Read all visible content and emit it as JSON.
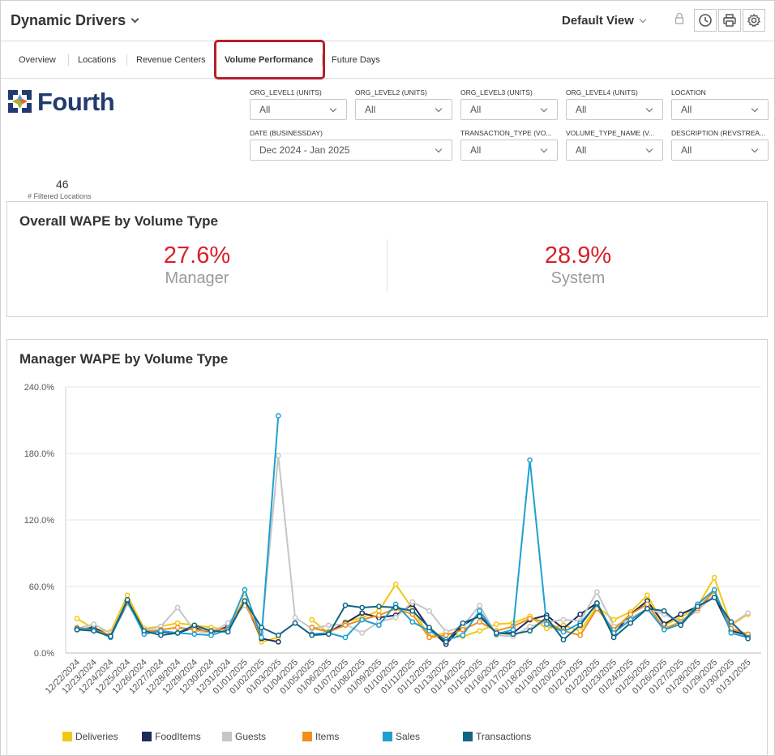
{
  "header": {
    "title": "Dynamic Drivers",
    "view_label": "Default View"
  },
  "tabs": [
    {
      "label": "Overview"
    },
    {
      "label": "Locations"
    },
    {
      "label": "Revenue Centers"
    },
    {
      "label": "Volume Performance",
      "active": true
    },
    {
      "label": "Future Days"
    }
  ],
  "brand": {
    "logo_text": "Fourth",
    "logo_colors": [
      "#5b9bd5",
      "#e8612c",
      "#8bbd3e",
      "#233a6e"
    ]
  },
  "filters": [
    {
      "label": "ORG_LEVEL1 (UNITS)",
      "value": "All"
    },
    {
      "label": "ORG_LEVEL2 (UNITS)",
      "value": "All"
    },
    {
      "label": "ORG_LEVEL3 (UNITS)",
      "value": "All"
    },
    {
      "label": "ORG_LEVEL4 (UNITS)",
      "value": "All"
    },
    {
      "label": "LOCATION",
      "value": "All"
    },
    {
      "label": "DATE (BUSINESSDAY)",
      "value": "Dec 2024 - Jan 2025"
    },
    {
      "label": "TRANSACTION_TYPE (VO...",
      "value": "All"
    },
    {
      "label": "VOLUME_TYPE_NAME (V...",
      "value": "All"
    },
    {
      "label": "DESCRIPTION (REVSTREA...",
      "value": "All"
    }
  ],
  "summary": {
    "count": "46",
    "count_label": "# Filtered Locations"
  },
  "overall_card": {
    "title": "Overall WAPE by Volume Type",
    "kpis": [
      {
        "value": "27.6%",
        "label": "Manager"
      },
      {
        "value": "28.9%",
        "label": "System"
      }
    ]
  },
  "colors": {
    "accent_red": "#d8202a",
    "tab_highlight": "#b4202c"
  },
  "chart_data": {
    "type": "line",
    "title": "Manager WAPE by Volume Type",
    "xlabel": "",
    "ylabel": "",
    "ylim": [
      0,
      240
    ],
    "y_ticks": [
      "0.0%",
      "60.0%",
      "120.0%",
      "180.0%",
      "240.0%"
    ],
    "grid": true,
    "legend_position": "bottom",
    "x": [
      "12/22/2024",
      "12/23/2024",
      "12/24/2024",
      "12/25/2024",
      "12/26/2024",
      "12/27/2024",
      "12/28/2024",
      "12/29/2024",
      "12/30/2024",
      "12/31/2024",
      "01/01/2025",
      "01/02/2025",
      "01/03/2025",
      "01/04/2025",
      "01/05/2025",
      "01/06/2025",
      "01/07/2025",
      "01/08/2025",
      "01/09/2025",
      "01/10/2025",
      "01/11/2025",
      "01/12/2025",
      "01/13/2025",
      "01/14/2025",
      "01/15/2025",
      "01/16/2025",
      "01/17/2025",
      "01/18/2025",
      "01/19/2025",
      "01/20/2025",
      "01/21/2025",
      "01/22/2025",
      "01/23/2025",
      "01/24/2025",
      "01/25/2025",
      "01/26/2025",
      "01/27/2025",
      "01/28/2025",
      "01/29/2025",
      "01/30/2025",
      "01/31/2025"
    ],
    "series": [
      {
        "name": "Deliveries",
        "color": "#f2c80f",
        "values": [
          31,
          22,
          19,
          52,
          22,
          24,
          27,
          25,
          23,
          21,
          50,
          10,
          14,
          null,
          30,
          18,
          28,
          32,
          38,
          62,
          40,
          15,
          18,
          15,
          20,
          26,
          27,
          33,
          22,
          25,
          20,
          42,
          30,
          37,
          52,
          25,
          32,
          42,
          68,
          25,
          35
        ]
      },
      {
        "name": "FoodItems",
        "color": "#1c2c5a",
        "values": [
          21,
          23,
          15,
          45,
          20,
          19,
          18,
          23,
          18,
          24,
          46,
          13,
          10,
          null,
          23,
          19,
          27,
          36,
          32,
          34,
          44,
          22,
          8,
          25,
          34,
          18,
          18,
          30,
          34,
          22,
          35,
          45,
          17,
          35,
          47,
          26,
          35,
          42,
          51,
          20,
          16
        ]
      },
      {
        "name": "Guests",
        "color": "#c6c6c6",
        "values": [
          22,
          26,
          18,
          45,
          20,
          24,
          41,
          20,
          18,
          27,
          43,
          18,
          178,
          32,
          22,
          25,
          26,
          18,
          28,
          32,
          46,
          38,
          19,
          24,
          43,
          16,
          15,
          24,
          28,
          30,
          29,
          55,
          24,
          31,
          40,
          35,
          28,
          38,
          53,
          26,
          36
        ]
      },
      {
        "name": "Items",
        "color": "#f28e1c",
        "values": [
          23,
          21,
          16,
          46,
          19,
          21,
          23,
          21,
          20,
          22,
          47,
          14,
          null,
          null,
          23,
          19,
          25,
          30,
          34,
          40,
          35,
          14,
          16,
          21,
          28,
          20,
          24,
          31,
          28,
          20,
          16,
          40,
          21,
          35,
          44,
          22,
          28,
          40,
          56,
          22,
          17
        ]
      },
      {
        "name": "Sales",
        "color": "#1fa0d2",
        "values": [
          22,
          21,
          14,
          47,
          17,
          20,
          18,
          17,
          16,
          21,
          57,
          14,
          214,
          null,
          17,
          18,
          14,
          30,
          25,
          44,
          28,
          20,
          12,
          16,
          38,
          17,
          21,
          174,
          26,
          19,
          27,
          44,
          18,
          30,
          40,
          21,
          26,
          44,
          57,
          18,
          14
        ]
      },
      {
        "name": "Transactions",
        "color": "#116484",
        "values": [
          21,
          20,
          15,
          48,
          20,
          16,
          18,
          25,
          20,
          19,
          47,
          23,
          16,
          27,
          16,
          17,
          43,
          41,
          42,
          41,
          38,
          23,
          10,
          27,
          33,
          18,
          17,
          20,
          32,
          12,
          25,
          45,
          14,
          27,
          40,
          38,
          25,
          42,
          50,
          28,
          13
        ]
      }
    ]
  }
}
